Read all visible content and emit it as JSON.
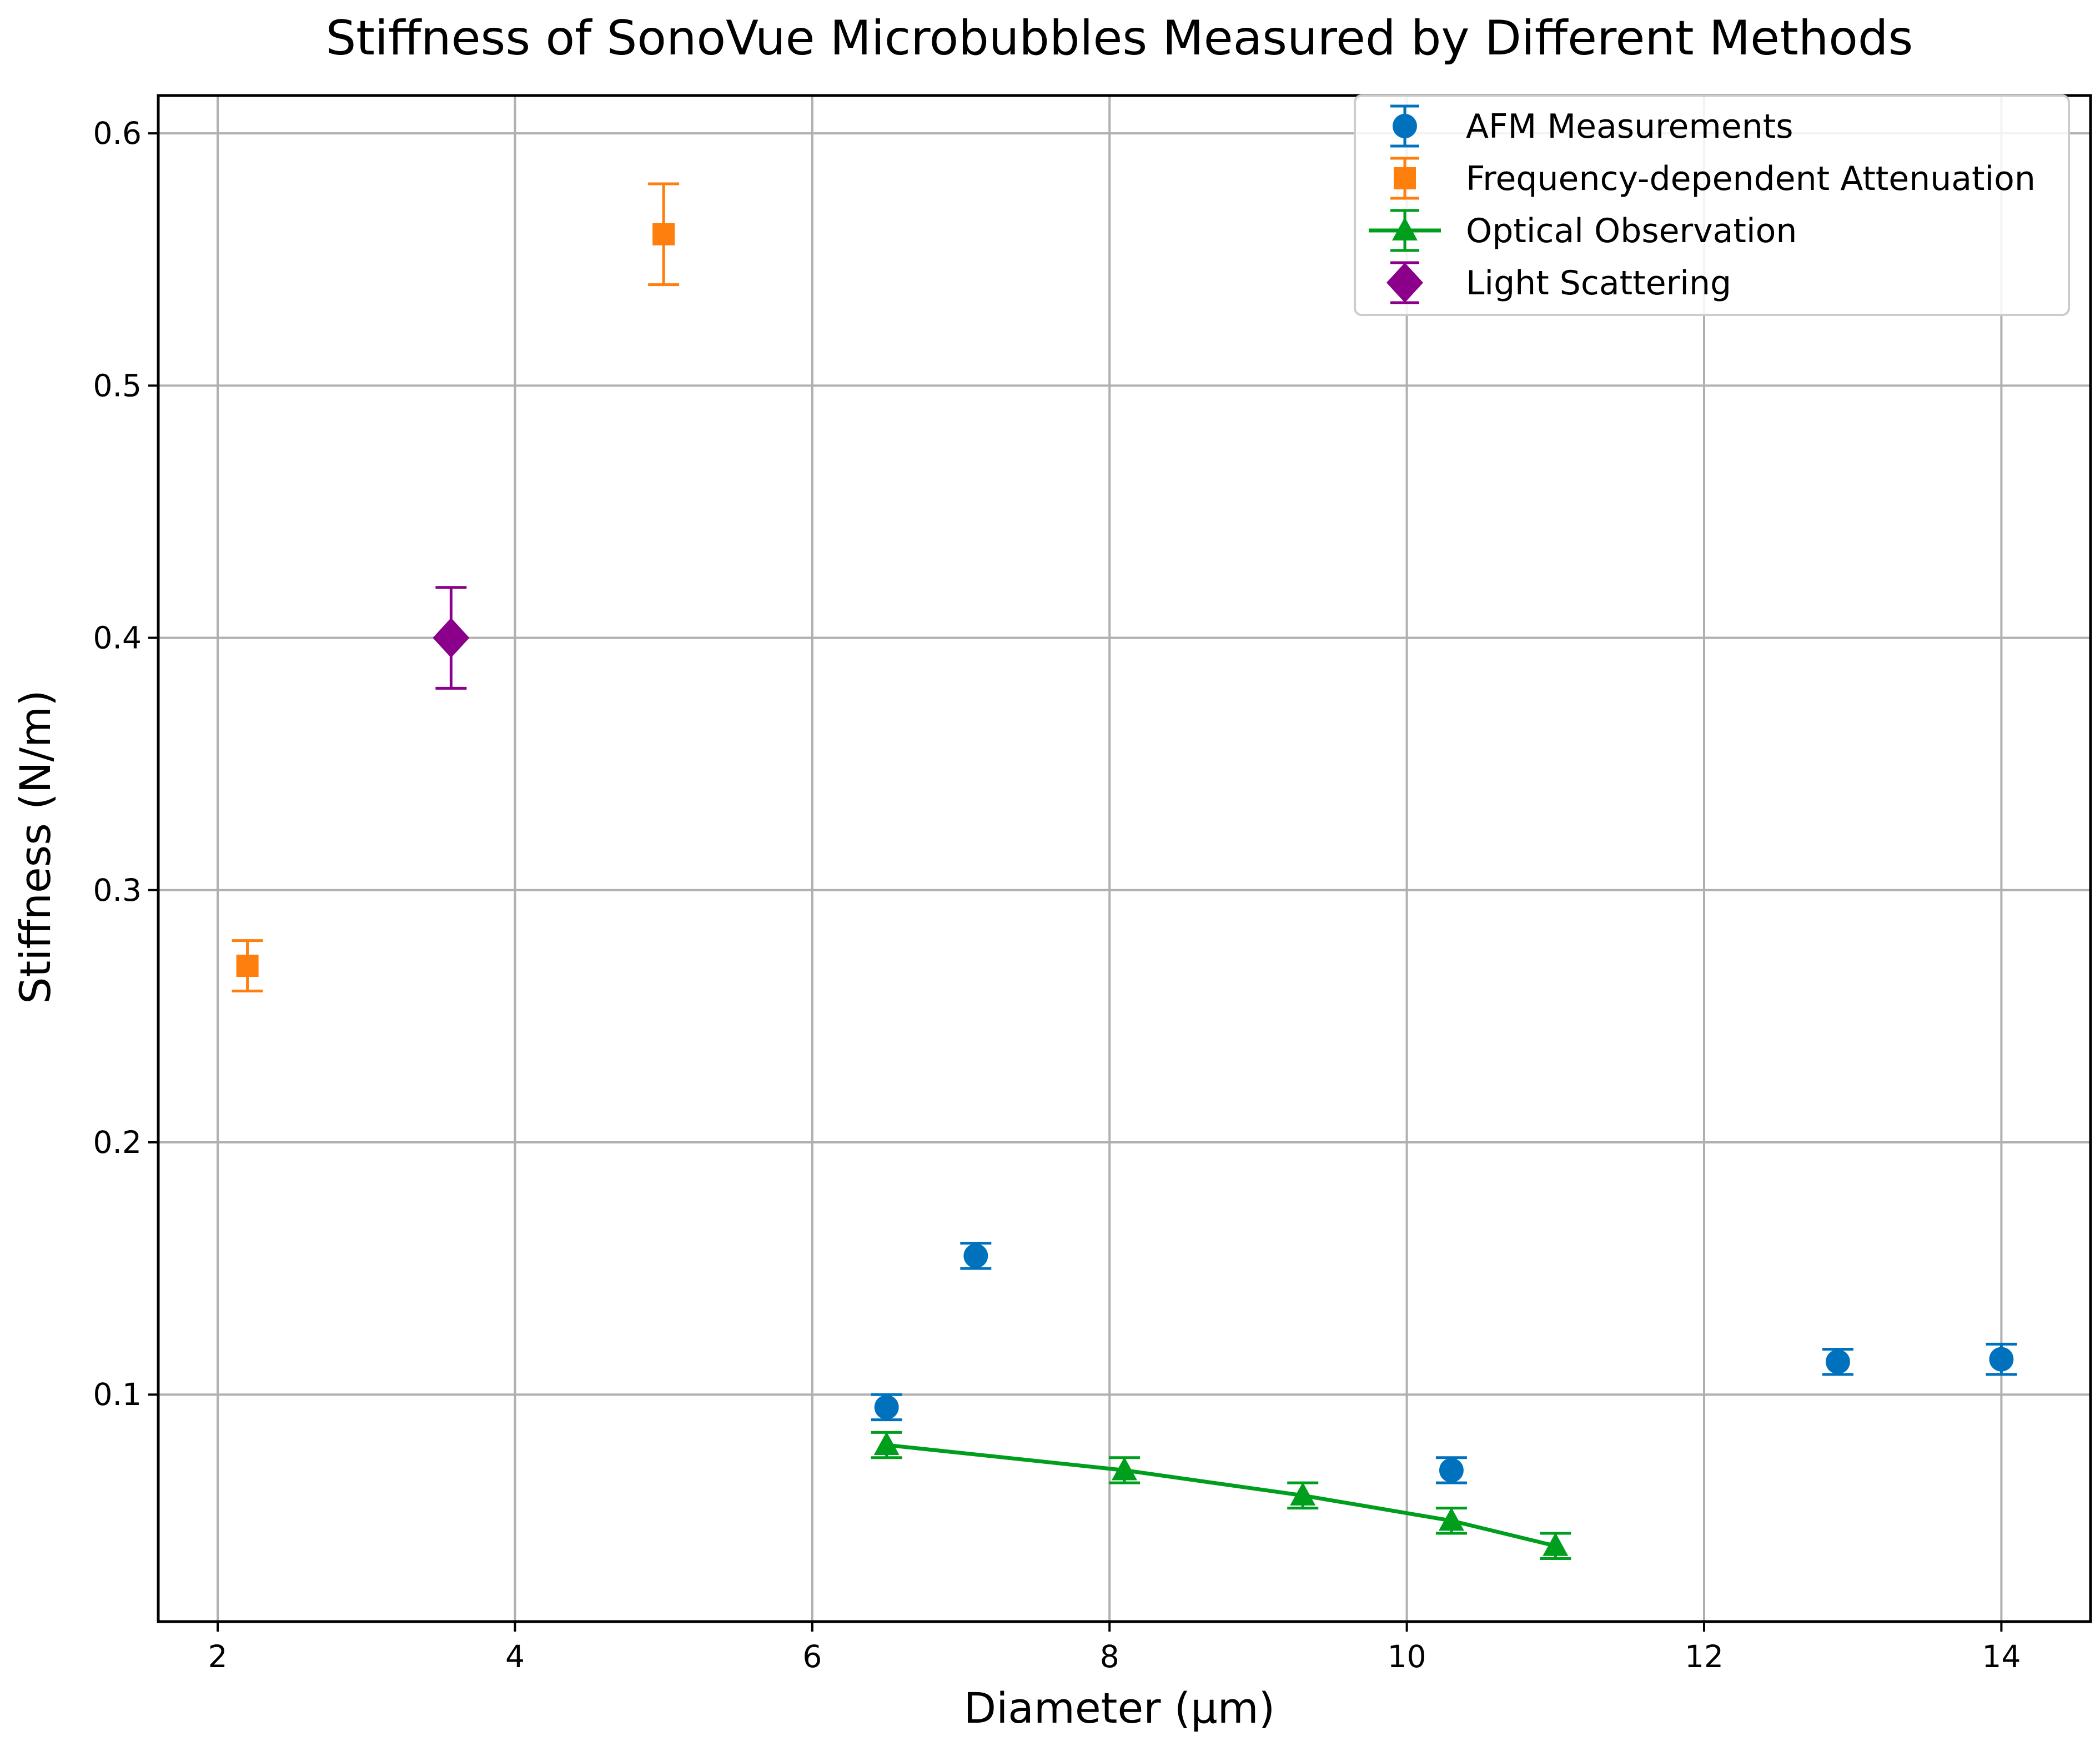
{
  "chart_data": {
    "type": "scatter",
    "title": "Stiffness of SonoVue Microbubbles Measured by Different Methods",
    "xlabel": "Diameter (µm)",
    "ylabel": "Stiffness (N/m)",
    "xlim": [
      1.6,
      14.6
    ],
    "ylim": [
      0.01,
      0.615
    ],
    "grid": true,
    "legend_position": "top-right",
    "xticks": [
      2,
      4,
      6,
      8,
      10,
      12,
      14
    ],
    "xtick_labels": [
      "2",
      "4",
      "6",
      "8",
      "10",
      "12",
      "14"
    ],
    "yticks": [
      0.1,
      0.2,
      0.3,
      0.4,
      0.5,
      0.6
    ],
    "ytick_labels": [
      "0.1",
      "0.2",
      "0.3",
      "0.4",
      "0.5",
      "0.6"
    ],
    "series": [
      {
        "name": "AFM Measurements",
        "marker": "circle",
        "line": false,
        "color": "#0072bd",
        "x": [
          6.5,
          7.1,
          10.3,
          12.9,
          14.0
        ],
        "y": [
          0.095,
          0.155,
          0.07,
          0.113,
          0.114
        ],
        "err": [
          0.005,
          0.005,
          0.005,
          0.005,
          0.006
        ]
      },
      {
        "name": "Frequency-dependent Attenuation",
        "marker": "square",
        "line": false,
        "color": "#ff7f0e",
        "x": [
          2.2,
          5.0
        ],
        "y": [
          0.27,
          0.56
        ],
        "err": [
          0.01,
          0.02
        ]
      },
      {
        "name": "Optical Observation",
        "marker": "triangle",
        "line": true,
        "color": "#009e1d",
        "x": [
          6.5,
          8.1,
          9.3,
          10.3,
          11.0
        ],
        "y": [
          0.08,
          0.07,
          0.06,
          0.05,
          0.04
        ],
        "err": [
          0.005,
          0.005,
          0.005,
          0.005,
          0.005
        ]
      },
      {
        "name": "Light Scattering",
        "marker": "diamond",
        "line": false,
        "color": "#8b008b",
        "x": [
          3.57
        ],
        "y": [
          0.4
        ],
        "err": [
          0.02
        ]
      }
    ]
  }
}
